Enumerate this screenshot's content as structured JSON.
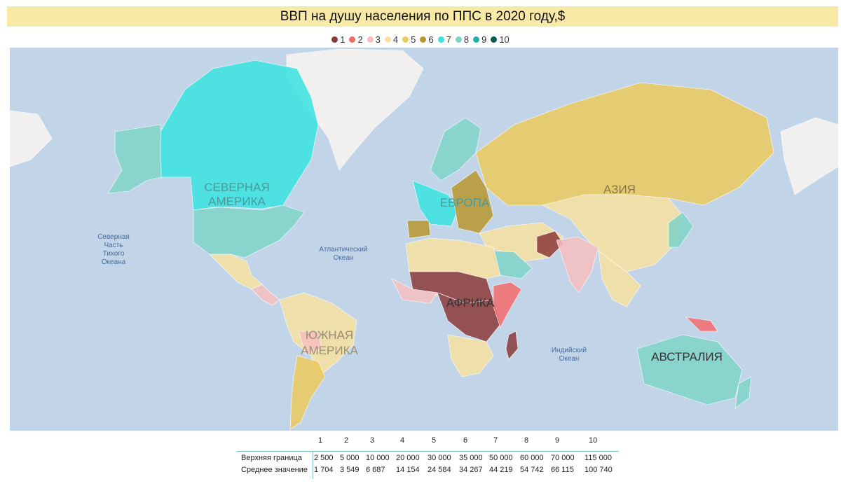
{
  "title": "ВВП на душу населения по ППС в 2020 году,$",
  "legend": [
    {
      "label": "1",
      "color": "#8c3a3a"
    },
    {
      "label": "2",
      "color": "#f26b6b"
    },
    {
      "label": "3",
      "color": "#f7bfbf"
    },
    {
      "label": "4",
      "color": "#f7e1a0"
    },
    {
      "label": "5",
      "color": "#ebc95c"
    },
    {
      "label": "6",
      "color": "#b8962e"
    },
    {
      "label": "7",
      "color": "#38e3df"
    },
    {
      "label": "8",
      "color": "#7fd3c8"
    },
    {
      "label": "9",
      "color": "#1fb3a7"
    },
    {
      "label": "10",
      "color": "#0d5a55"
    }
  ],
  "map": {
    "ocean_color": "#c2d4e8",
    "land_nodata_color": "#f2f0ee",
    "labels": {
      "north_america": [
        "СЕВЕРНАЯ",
        "АМЕРИКА"
      ],
      "south_america": [
        "ЮЖНАЯ",
        "АМЕРИКА"
      ],
      "europe": "ЕВРОПА",
      "asia": "АЗИЯ",
      "africa": "АФРИКА",
      "australia": "АВСТРАЛИЯ",
      "atlantic": [
        "Атлантический",
        "Океан"
      ],
      "pacific": [
        "Северная",
        "Часть",
        "Тихого",
        "Океана"
      ],
      "indian": [
        "Индийский",
        "Океан"
      ]
    },
    "regions": [
      {
        "name": "canada",
        "group": 7
      },
      {
        "name": "alaska",
        "group": 8
      },
      {
        "name": "usa",
        "group": 8
      },
      {
        "name": "greenland",
        "group": null
      },
      {
        "name": "mexico",
        "group": 4
      },
      {
        "name": "central-america",
        "group": 3
      },
      {
        "name": "south-america",
        "group": 4
      },
      {
        "name": "argentina",
        "group": 5
      },
      {
        "name": "bolivia",
        "group": 3
      },
      {
        "name": "scandinavia",
        "group": 8
      },
      {
        "name": "western-europe",
        "group": 7
      },
      {
        "name": "eastern-europe",
        "group": 6
      },
      {
        "name": "iberia",
        "group": 6
      },
      {
        "name": "russia",
        "group": 5
      },
      {
        "name": "china",
        "group": 4
      },
      {
        "name": "india",
        "group": 3
      },
      {
        "name": "middle-east",
        "group": 4
      },
      {
        "name": "saudi-arabia",
        "group": 8
      },
      {
        "name": "afghanistan",
        "group": 1
      },
      {
        "name": "north-africa",
        "group": 4
      },
      {
        "name": "sahel",
        "group": 1
      },
      {
        "name": "west-africa",
        "group": 3
      },
      {
        "name": "central-africa",
        "group": 1
      },
      {
        "name": "east-africa",
        "group": 2
      },
      {
        "name": "southern-africa",
        "group": 4
      },
      {
        "name": "madagascar",
        "group": 1
      },
      {
        "name": "japan",
        "group": 8
      },
      {
        "name": "southeast-asia",
        "group": 4
      },
      {
        "name": "papua",
        "group": 2
      },
      {
        "name": "australia",
        "group": 8
      },
      {
        "name": "new-zealand",
        "group": 8
      }
    ]
  },
  "breaks": {
    "indices": [
      "1",
      "2",
      "3",
      "4",
      "5",
      "6",
      "7",
      "8",
      "9",
      "10"
    ],
    "upper_label": "Верхняя граница",
    "upper": [
      "2 500",
      "5 000",
      "10 000",
      "20 000",
      "30 000",
      "35 000",
      "50 000",
      "60 000",
      "70 000",
      "115 000"
    ],
    "mean_label": "Среднее значение",
    "mean": [
      "1 704",
      "3 549",
      "6 687",
      "14 154",
      "24 584",
      "34 267",
      "44 219",
      "54 742",
      "66 115",
      "100 740"
    ]
  }
}
